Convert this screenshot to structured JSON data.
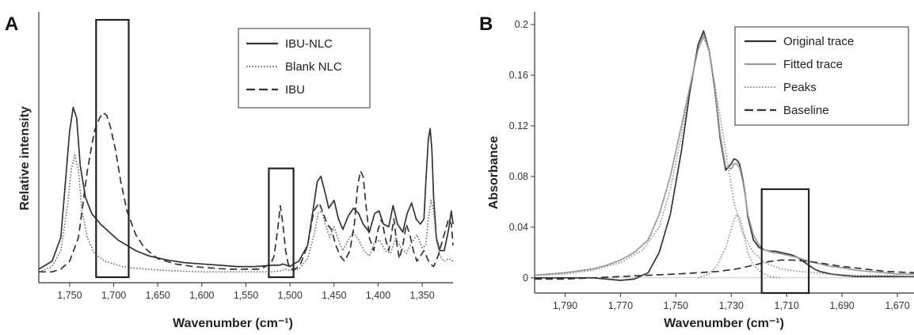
{
  "chart_data": [
    {
      "panel_label": "A",
      "type": "line",
      "xlabel": "Wavenumber (cm⁻¹)",
      "ylabel": "Relative intensity",
      "x_reversed": true,
      "xlim": [
        1785,
        1315
      ],
      "ylim": [
        0,
        1
      ],
      "x_ticks": [
        1750,
        1700,
        1650,
        1600,
        1550,
        1500,
        1450,
        1400,
        1350
      ],
      "x_tick_labels": [
        "1,750",
        "1,700",
        "1,650",
        "1,600",
        "1,550",
        "1,500",
        "1,450",
        "1,400",
        "1,350"
      ],
      "grid": false,
      "legend_position": "top-right",
      "legend": [
        {
          "name": "IBU-NLC",
          "style": "solid",
          "color": "#333333"
        },
        {
          "name": "Blank NLC",
          "style": "dotted",
          "color": "#666666"
        },
        {
          "name": "IBU",
          "style": "dashed",
          "color": "#333333"
        }
      ],
      "series": [
        {
          "name": "IBU-NLC",
          "x": [
            1785,
            1770,
            1760,
            1754,
            1750,
            1746,
            1742,
            1738,
            1732,
            1725,
            1715,
            1705,
            1695,
            1685,
            1675,
            1660,
            1640,
            1620,
            1600,
            1580,
            1560,
            1540,
            1520,
            1512,
            1508,
            1504,
            1500,
            1496,
            1490,
            1480,
            1474,
            1469,
            1465,
            1461,
            1456,
            1450,
            1445,
            1440,
            1434,
            1428,
            1422,
            1417,
            1410,
            1404,
            1399,
            1394,
            1388,
            1383,
            1378,
            1372,
            1367,
            1362,
            1357,
            1352,
            1348,
            1346,
            1343,
            1341,
            1339,
            1337,
            1334,
            1330,
            1325,
            1320,
            1317,
            1315
          ],
          "y": [
            0.03,
            0.06,
            0.15,
            0.39,
            0.55,
            0.64,
            0.6,
            0.42,
            0.3,
            0.24,
            0.2,
            0.17,
            0.14,
            0.12,
            0.1,
            0.08,
            0.065,
            0.055,
            0.05,
            0.045,
            0.04,
            0.04,
            0.045,
            0.045,
            0.05,
            0.045,
            0.04,
            0.05,
            0.06,
            0.12,
            0.25,
            0.36,
            0.38,
            0.33,
            0.26,
            0.29,
            0.22,
            0.18,
            0.23,
            0.26,
            0.24,
            0.2,
            0.17,
            0.24,
            0.25,
            0.2,
            0.19,
            0.27,
            0.2,
            0.17,
            0.24,
            0.28,
            0.22,
            0.2,
            0.22,
            0.35,
            0.52,
            0.56,
            0.48,
            0.3,
            0.15,
            0.1,
            0.1,
            0.18,
            0.25,
            0.2
          ]
        },
        {
          "name": "Blank NLC",
          "x": [
            1785,
            1770,
            1760,
            1752,
            1748,
            1744,
            1740,
            1736,
            1730,
            1722,
            1710,
            1700,
            1690,
            1680,
            1660,
            1640,
            1600,
            1560,
            1520,
            1510,
            1505,
            1500,
            1490,
            1480,
            1472,
            1468,
            1464,
            1460,
            1455,
            1450,
            1445,
            1440,
            1434,
            1428,
            1422,
            1416,
            1410,
            1404,
            1398,
            1392,
            1386,
            1380,
            1374,
            1368,
            1362,
            1356,
            1350,
            1346,
            1343,
            1340,
            1337,
            1334,
            1330,
            1325,
            1320,
            1315
          ],
          "y": [
            0.02,
            0.04,
            0.1,
            0.28,
            0.41,
            0.46,
            0.4,
            0.25,
            0.15,
            0.09,
            0.06,
            0.05,
            0.04,
            0.035,
            0.03,
            0.025,
            0.02,
            0.02,
            0.02,
            0.025,
            0.03,
            0.025,
            0.03,
            0.07,
            0.17,
            0.24,
            0.25,
            0.2,
            0.15,
            0.19,
            0.14,
            0.1,
            0.14,
            0.17,
            0.14,
            0.1,
            0.08,
            0.13,
            0.14,
            0.1,
            0.09,
            0.15,
            0.11,
            0.09,
            0.13,
            0.16,
            0.11,
            0.12,
            0.22,
            0.29,
            0.25,
            0.14,
            0.08,
            0.06,
            0.07,
            0.06
          ]
        },
        {
          "name": "IBU",
          "x": [
            1785,
            1770,
            1760,
            1750,
            1740,
            1730,
            1722,
            1716,
            1712,
            1708,
            1704,
            1698,
            1692,
            1685,
            1675,
            1665,
            1650,
            1630,
            1610,
            1590,
            1570,
            1550,
            1535,
            1528,
            1522,
            1518,
            1514,
            1511,
            1508,
            1505,
            1502,
            1498,
            1494,
            1488,
            1480,
            1473,
            1467,
            1462,
            1458,
            1453,
            1448,
            1443,
            1438,
            1432,
            1427,
            1423,
            1420,
            1417,
            1414,
            1410,
            1405,
            1400,
            1396,
            1392,
            1388,
            1385,
            1382,
            1379,
            1376,
            1372,
            1368,
            1364,
            1360,
            1356,
            1352,
            1348,
            1344,
            1341,
            1337,
            1332,
            1326,
            1320,
            1317,
            1315
          ],
          "y": [
            0.02,
            0.02,
            0.03,
            0.06,
            0.15,
            0.4,
            0.55,
            0.6,
            0.62,
            0.61,
            0.57,
            0.48,
            0.36,
            0.25,
            0.16,
            0.11,
            0.07,
            0.05,
            0.04,
            0.035,
            0.03,
            0.03,
            0.03,
            0.04,
            0.05,
            0.08,
            0.18,
            0.27,
            0.2,
            0.1,
            0.05,
            0.03,
            0.03,
            0.05,
            0.12,
            0.25,
            0.28,
            0.24,
            0.2,
            0.18,
            0.12,
            0.08,
            0.06,
            0.1,
            0.2,
            0.35,
            0.4,
            0.38,
            0.28,
            0.15,
            0.1,
            0.18,
            0.22,
            0.15,
            0.1,
            0.16,
            0.22,
            0.13,
            0.07,
            0.12,
            0.2,
            0.16,
            0.1,
            0.06,
            0.08,
            0.1,
            0.07,
            0.05,
            0.04,
            0.08,
            0.15,
            0.22,
            0.2,
            0.12
          ]
        }
      ],
      "highlight_boxes": [
        {
          "x_range": [
            1720,
            1683
          ],
          "y_range": [
            0,
            0.97
          ]
        },
        {
          "x_range": [
            1524,
            1496
          ],
          "y_range": [
            0,
            0.41
          ]
        }
      ]
    },
    {
      "panel_label": "B",
      "type": "line",
      "xlabel": "Wavenumber (cm⁻¹)",
      "ylabel": "Absorbance",
      "x_reversed": true,
      "xlim": [
        1801,
        1664
      ],
      "ylim": [
        -0.012,
        0.21
      ],
      "x_ticks": [
        1790,
        1770,
        1750,
        1730,
        1710,
        1690,
        1670
      ],
      "x_tick_labels": [
        "1,790",
        "1,770",
        "1,750",
        "1,730",
        "1,710",
        "1,690",
        "1,670"
      ],
      "y_ticks": [
        0,
        0.04,
        0.08,
        0.12,
        0.16,
        0.2
      ],
      "y_tick_labels": [
        "0",
        "0.04",
        "0.08",
        "0.12",
        "0.16",
        "0.2"
      ],
      "grid": false,
      "legend_position": "top-right",
      "legend": [
        {
          "name": "Original trace",
          "style": "solid",
          "color": "#333333"
        },
        {
          "name": "Fitted trace",
          "style": "solid",
          "color": "#9a9a9a"
        },
        {
          "name": "Peaks",
          "style": "dotted",
          "color": "#888888"
        },
        {
          "name": "Baseline",
          "style": "dashed",
          "color": "#333333"
        }
      ],
      "series": [
        {
          "name": "Original trace",
          "x": [
            1801,
            1790,
            1780,
            1775,
            1770,
            1765,
            1760,
            1756,
            1752,
            1748,
            1745,
            1742,
            1740,
            1738,
            1736,
            1734,
            1732,
            1730,
            1729,
            1728,
            1727,
            1726,
            1725,
            1724,
            1722,
            1720,
            1718,
            1716,
            1714,
            1712,
            1710,
            1708,
            1706,
            1704,
            1702,
            1700,
            1698,
            1694,
            1690,
            1685,
            1680,
            1675,
            1670,
            1664
          ],
          "y": [
            0,
            0,
            0,
            -0.001,
            -0.002,
            -0.001,
            0.004,
            0.02,
            0.05,
            0.1,
            0.146,
            0.184,
            0.195,
            0.18,
            0.15,
            0.11,
            0.085,
            0.09,
            0.094,
            0.093,
            0.09,
            0.08,
            0.067,
            0.048,
            0.03,
            0.024,
            0.022,
            0.021,
            0.021,
            0.02,
            0.019,
            0.018,
            0.016,
            0.013,
            0.01,
            0.007,
            0.005,
            0.003,
            0.002,
            0.001,
            0.001,
            0.001,
            0.001,
            0.001
          ]
        },
        {
          "name": "Fitted trace",
          "x": [
            1801,
            1790,
            1780,
            1775,
            1770,
            1765,
            1760,
            1756,
            1752,
            1748,
            1745,
            1742,
            1740,
            1738,
            1736,
            1734,
            1732,
            1730,
            1729,
            1728,
            1727,
            1726,
            1725,
            1724,
            1722,
            1720,
            1718,
            1715,
            1712,
            1710,
            1706,
            1702,
            1698,
            1694,
            1690,
            1685,
            1680,
            1675,
            1670,
            1664
          ],
          "y": [
            0.002,
            0.004,
            0.007,
            0.01,
            0.014,
            0.02,
            0.03,
            0.05,
            0.08,
            0.12,
            0.15,
            0.18,
            0.192,
            0.18,
            0.152,
            0.113,
            0.088,
            0.086,
            0.09,
            0.09,
            0.087,
            0.078,
            0.066,
            0.05,
            0.034,
            0.026,
            0.022,
            0.02,
            0.019,
            0.018,
            0.016,
            0.013,
            0.011,
            0.009,
            0.008,
            0.006,
            0.005,
            0.004,
            0.003,
            0.003
          ]
        },
        {
          "name": "Peaks",
          "x": [
            1801,
            1790,
            1780,
            1770,
            1762,
            1756,
            1752,
            1748,
            1745,
            1742,
            1740,
            1738,
            1735,
            1732,
            1729,
            1726,
            1722,
            1718,
            1712,
            1705,
            1695,
            1685,
            1675,
            1664
          ],
          "y": [
            0.002,
            0.003,
            0.006,
            0.012,
            0.022,
            0.04,
            0.07,
            0.112,
            0.15,
            0.18,
            0.19,
            0.178,
            0.14,
            0.1,
            0.06,
            0.036,
            0.02,
            0.012,
            0.007,
            0.005,
            0.003,
            0.002,
            0.002,
            0.001
          ]
        },
        {
          "name": "Peaks",
          "x": [
            1742,
            1738,
            1735,
            1732,
            1730,
            1729,
            1728,
            1727,
            1726,
            1725,
            1724,
            1722,
            1719,
            1716,
            1712
          ],
          "y": [
            0,
            0.003,
            0.01,
            0.024,
            0.038,
            0.046,
            0.05,
            0.048,
            0.04,
            0.03,
            0.02,
            0.01,
            0.004,
            0.001,
            0
          ]
        },
        {
          "name": "Baseline",
          "x": [
            1801,
            1790,
            1780,
            1770,
            1760,
            1750,
            1742,
            1735,
            1728,
            1722,
            1716,
            1712,
            1708,
            1702,
            1696,
            1690,
            1682,
            1674,
            1664
          ],
          "y": [
            -0.001,
            -0.001,
            0,
            0.001,
            0.002,
            0.003,
            0.004,
            0.005,
            0.007,
            0.01,
            0.013,
            0.014,
            0.014,
            0.013,
            0.011,
            0.009,
            0.007,
            0.005,
            0.004
          ]
        }
      ],
      "zero_line": true,
      "highlight_boxes": [
        {
          "x_range": [
            1719,
            1702
          ],
          "y_range": [
            -0.012,
            0.07
          ]
        }
      ]
    }
  ],
  "colors": {
    "axis": "#333333",
    "trace_dark": "#333333",
    "trace_gray": "#9a9a9a",
    "trace_dotted": "#777777",
    "box": "#222222"
  }
}
